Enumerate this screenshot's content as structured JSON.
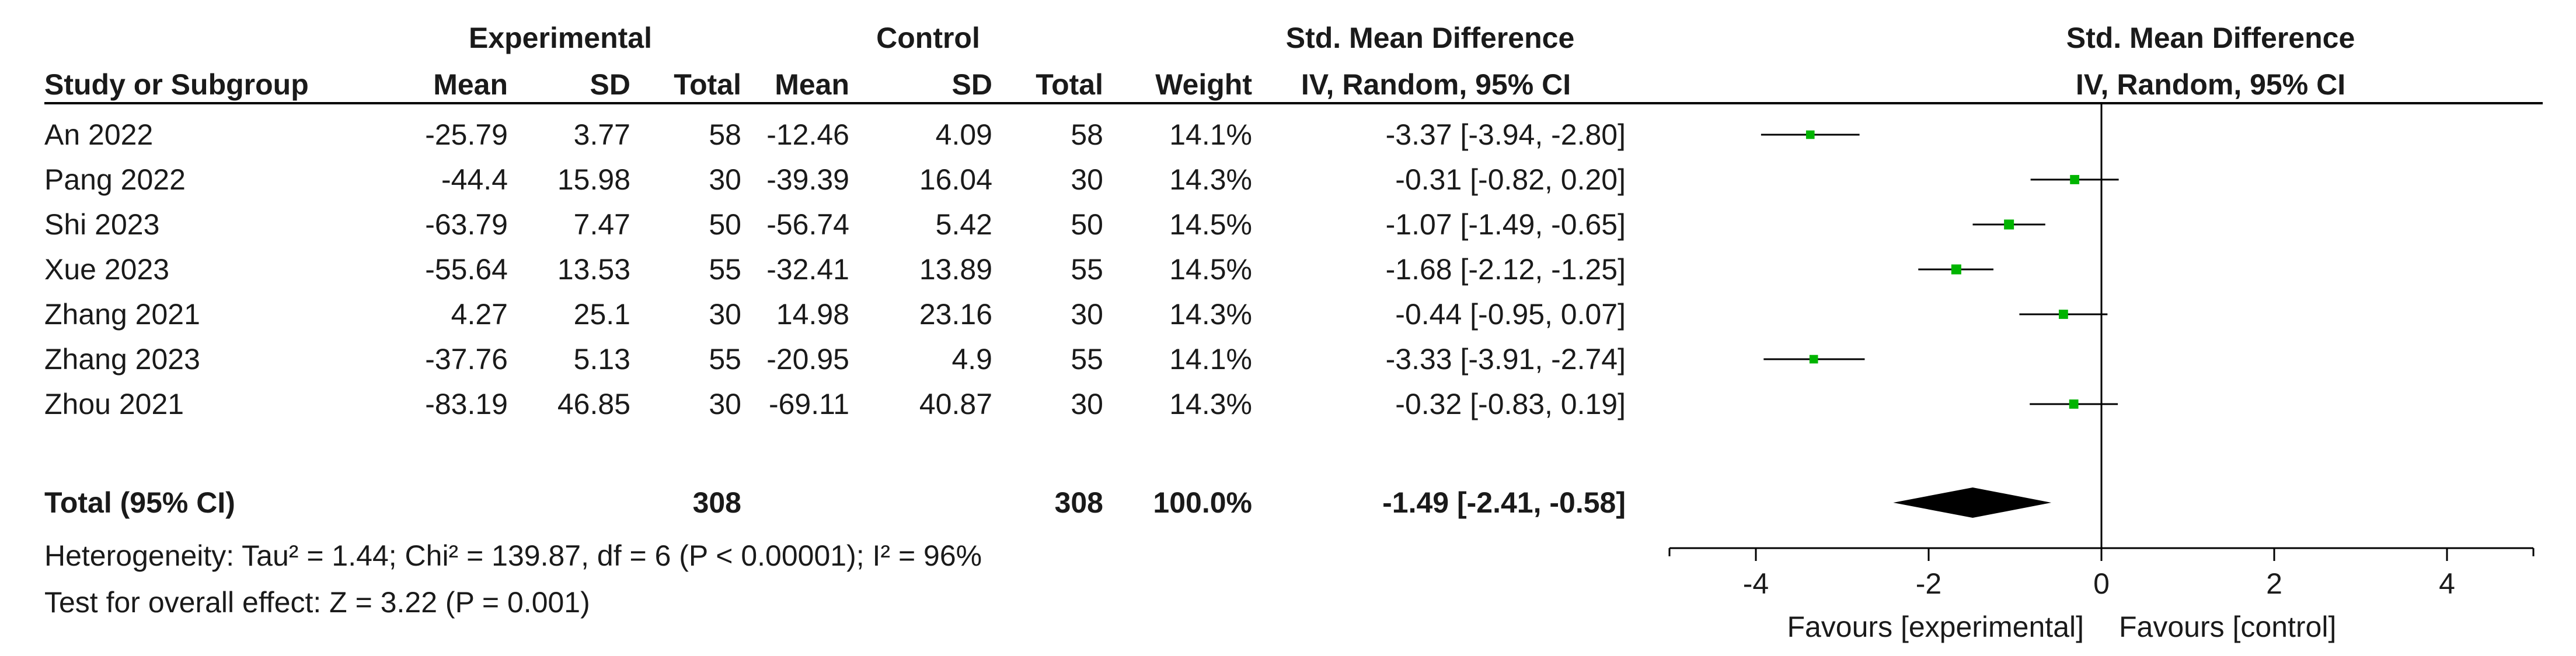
{
  "table": {
    "group_headers": {
      "experimental": "Experimental",
      "control": "Control",
      "effect": "Std. Mean Difference",
      "plot_title": "Std. Mean Difference"
    },
    "columns": {
      "study": "Study or Subgroup",
      "exp_mean": "Mean",
      "exp_sd": "SD",
      "exp_total": "Total",
      "ctl_mean": "Mean",
      "ctl_sd": "SD",
      "ctl_total": "Total",
      "weight": "Weight",
      "ci": "IV, Random, 95% CI",
      "plot_subtitle": "IV, Random, 95% CI"
    },
    "rows": [
      {
        "study": "An 2022",
        "exp_mean": "-25.79",
        "exp_sd": "3.77",
        "exp_total": "58",
        "ctl_mean": "-12.46",
        "ctl_sd": "4.09",
        "ctl_total": "58",
        "weight": "14.1%",
        "ci": "-3.37 [-3.94, -2.80]"
      },
      {
        "study": "Pang 2022",
        "exp_mean": "-44.4",
        "exp_sd": "15.98",
        "exp_total": "30",
        "ctl_mean": "-39.39",
        "ctl_sd": "16.04",
        "ctl_total": "30",
        "weight": "14.3%",
        "ci": "-0.31 [-0.82, 0.20]"
      },
      {
        "study": "Shi 2023",
        "exp_mean": "-63.79",
        "exp_sd": "7.47",
        "exp_total": "50",
        "ctl_mean": "-56.74",
        "ctl_sd": "5.42",
        "ctl_total": "50",
        "weight": "14.5%",
        "ci": "-1.07 [-1.49, -0.65]"
      },
      {
        "study": "Xue 2023",
        "exp_mean": "-55.64",
        "exp_sd": "13.53",
        "exp_total": "55",
        "ctl_mean": "-32.41",
        "ctl_sd": "13.89",
        "ctl_total": "55",
        "weight": "14.5%",
        "ci": "-1.68 [-2.12, -1.25]"
      },
      {
        "study": "Zhang 2021",
        "exp_mean": "4.27",
        "exp_sd": "25.1",
        "exp_total": "30",
        "ctl_mean": "14.98",
        "ctl_sd": "23.16",
        "ctl_total": "30",
        "weight": "14.3%",
        "ci": "-0.44 [-0.95, 0.07]"
      },
      {
        "study": "Zhang 2023",
        "exp_mean": "-37.76",
        "exp_sd": "5.13",
        "exp_total": "55",
        "ctl_mean": "-20.95",
        "ctl_sd": "4.9",
        "ctl_total": "55",
        "weight": "14.1%",
        "ci": "-3.33 [-3.91, -2.74]"
      },
      {
        "study": "Zhou 2021",
        "exp_mean": "-83.19",
        "exp_sd": "46.85",
        "exp_total": "30",
        "ctl_mean": "-69.11",
        "ctl_sd": "40.87",
        "ctl_total": "30",
        "weight": "14.3%",
        "ci": "-0.32 [-0.83, 0.19]"
      }
    ],
    "total": {
      "label": "Total (95% CI)",
      "exp_total": "308",
      "ctl_total": "308",
      "weight": "100.0%",
      "ci": "-1.49 [-2.41, -0.58]"
    },
    "heterogeneity": "Heterogeneity: Tau² = 1.44; Chi² = 139.87, df = 6 (P < 0.00001); I² = 96%",
    "overall_effect": "Test for overall effect: Z = 3.22 (P = 0.001)"
  },
  "colors": {
    "marker": "#00b400",
    "line": "#000000",
    "diamond": "#000000"
  },
  "chart_data": {
    "type": "forest",
    "xlim": [
      -5,
      5
    ],
    "xticks": [
      -4,
      -2,
      0,
      2,
      4
    ],
    "xtick_labels": [
      "-4",
      "-2",
      "0",
      "2",
      "4"
    ],
    "reference_line": 0,
    "favours_left": "Favours [experimental]",
    "favours_right": "Favours [control]",
    "studies": [
      {
        "label": "An 2022",
        "estimate": -3.37,
        "lower": -3.94,
        "upper": -2.8,
        "weight": 14.1
      },
      {
        "label": "Pang 2022",
        "estimate": -0.31,
        "lower": -0.82,
        "upper": 0.2,
        "weight": 14.3
      },
      {
        "label": "Shi 2023",
        "estimate": -1.07,
        "lower": -1.49,
        "upper": -0.65,
        "weight": 14.5
      },
      {
        "label": "Xue 2023",
        "estimate": -1.68,
        "lower": -2.12,
        "upper": -1.25,
        "weight": 14.5
      },
      {
        "label": "Zhang 2021",
        "estimate": -0.44,
        "lower": -0.95,
        "upper": 0.07,
        "weight": 14.3
      },
      {
        "label": "Zhang 2023",
        "estimate": -3.33,
        "lower": -3.91,
        "upper": -2.74,
        "weight": 14.1
      },
      {
        "label": "Zhou 2021",
        "estimate": -0.32,
        "lower": -0.83,
        "upper": 0.19,
        "weight": 14.3
      }
    ],
    "pooled": {
      "label": "Total (95% CI)",
      "estimate": -1.49,
      "lower": -2.41,
      "upper": -0.58
    }
  }
}
